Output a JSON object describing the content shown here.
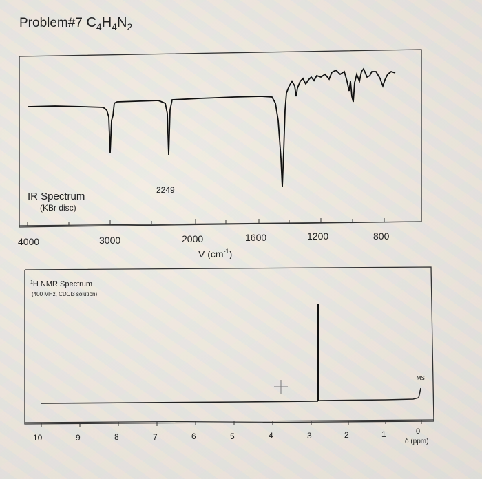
{
  "problem": {
    "label": "Problem#7",
    "formula_parts": [
      "C",
      "4",
      "H",
      "4",
      "N",
      "2"
    ]
  },
  "ir": {
    "title": "IR Spectrum",
    "subtitle": "(KBr disc)",
    "peak_label": "2249",
    "tick_labels": [
      "4000",
      "3000",
      "2000",
      "1600",
      "1200",
      "800"
    ],
    "axis_label_main": "V (cm",
    "axis_label_sup": "-1",
    "axis_label_end": ")"
  },
  "nmr": {
    "title_sup": "1",
    "title": "H NMR Spectrum",
    "subtitle": "(400 MHz, CDCl3 solution)",
    "tms_label": "TMS",
    "tick_labels": [
      "10",
      "9",
      "8",
      "7",
      "6",
      "5",
      "4",
      "3",
      "2",
      "1",
      "0"
    ],
    "axis_label": "δ (ppm)"
  }
}
